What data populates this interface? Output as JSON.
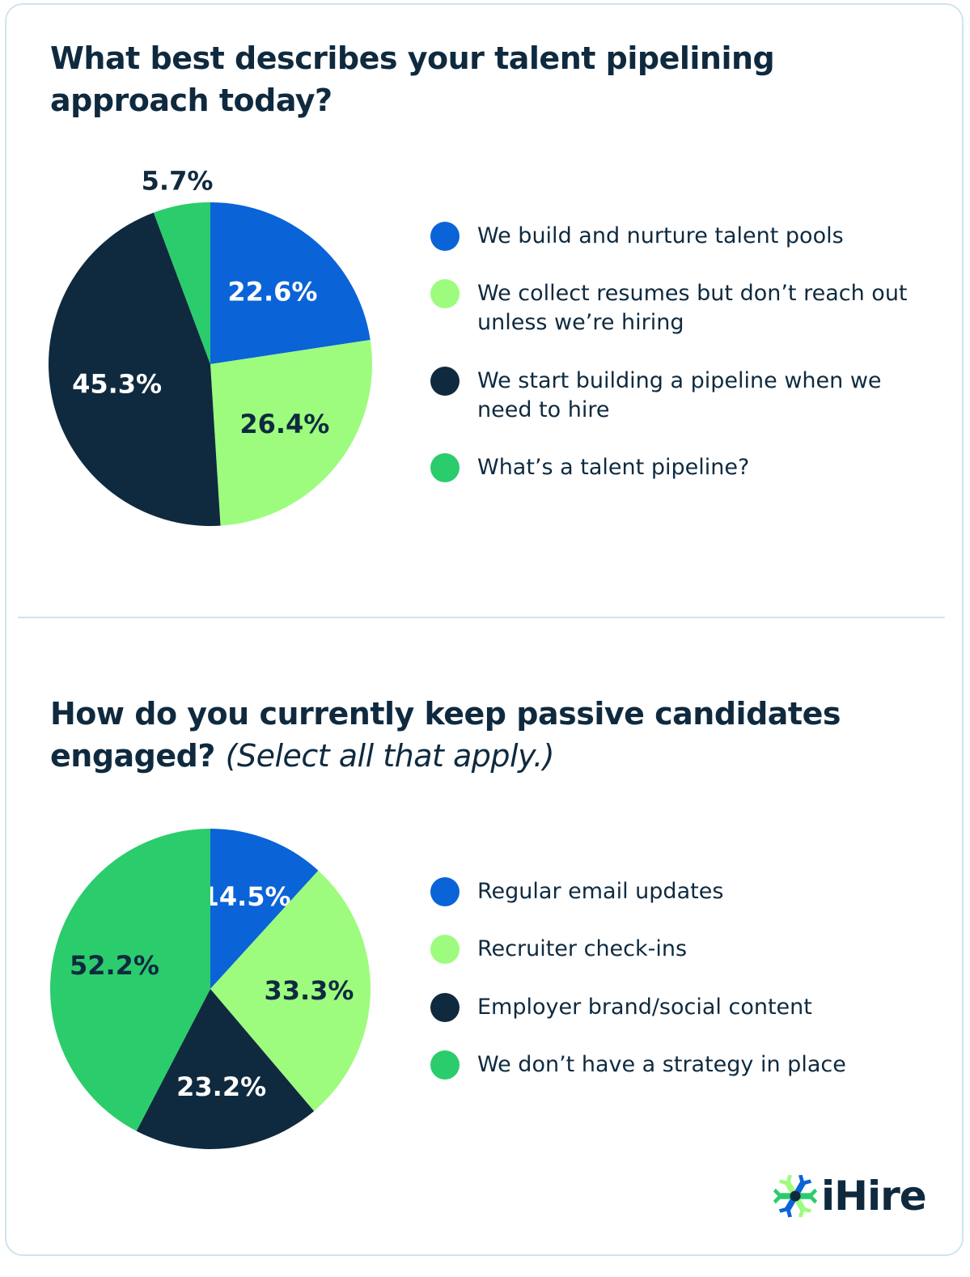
{
  "colors": {
    "blue": "#0b63d8",
    "light_green": "#9dfc7e",
    "navy": "#0f2a3f",
    "green": "#2bcc6c"
  },
  "chart1": {
    "title": "What best describes your talent pipelining approach today?",
    "legend": [
      "We build and nurture talent pools",
      "We collect resumes but don’t reach out unless we’re hiring",
      "We start building a pipeline when we need to hire",
      "What’s a talent pipeline?"
    ]
  },
  "chart2": {
    "title": "How do you currently keep passive candidates engaged?",
    "title_note": "(Select all that apply.)",
    "legend": [
      "Regular email updates",
      "Recruiter check-ins",
      "Employer brand/social content",
      "We don’t have a strategy in place"
    ]
  },
  "chart_data": [
    {
      "type": "pie",
      "title": "What best describes your talent pipelining approach today?",
      "unit": "%",
      "slices": [
        {
          "label": "We build and nurture talent pools",
          "value": 22.6,
          "display": "22.6%",
          "color": "#0b63d8",
          "text_color": "#ffffff"
        },
        {
          "label": "We collect resumes but don’t reach out unless we’re hiring",
          "value": 26.4,
          "display": "26.4%",
          "color": "#9dfc7e",
          "text_color": "#0f2a3f"
        },
        {
          "label": "We start building a pipeline when we need to hire",
          "value": 45.3,
          "display": "45.3%",
          "color": "#0f2a3f",
          "text_color": "#ffffff"
        },
        {
          "label": "What’s a talent pipeline?",
          "value": 5.7,
          "display": "5.7%",
          "color": "#2bcc6c",
          "text_color": "#0f2a3f",
          "label_outside": true
        }
      ]
    },
    {
      "type": "pie",
      "title": "How do you currently keep passive candidates engaged? (Select all that apply.)",
      "unit": "%",
      "slices": [
        {
          "label": "Regular email updates",
          "value": 14.5,
          "display": "14.5%",
          "color": "#0b63d8",
          "text_color": "#ffffff"
        },
        {
          "label": "Recruiter check-ins",
          "value": 33.3,
          "display": "33.3%",
          "color": "#9dfc7e",
          "text_color": "#0f2a3f"
        },
        {
          "label": "Employer brand/social content",
          "value": 23.2,
          "display": "23.2%",
          "color": "#0f2a3f",
          "text_color": "#ffffff"
        },
        {
          "label": "We don’t have a strategy in place",
          "value": 52.2,
          "display": "52.2%",
          "color": "#2bcc6c",
          "text_color": "#0f2a3f"
        }
      ]
    }
  ],
  "logo": {
    "text": "iHire",
    "icon": "ihire-snowflake-logo-icon"
  }
}
